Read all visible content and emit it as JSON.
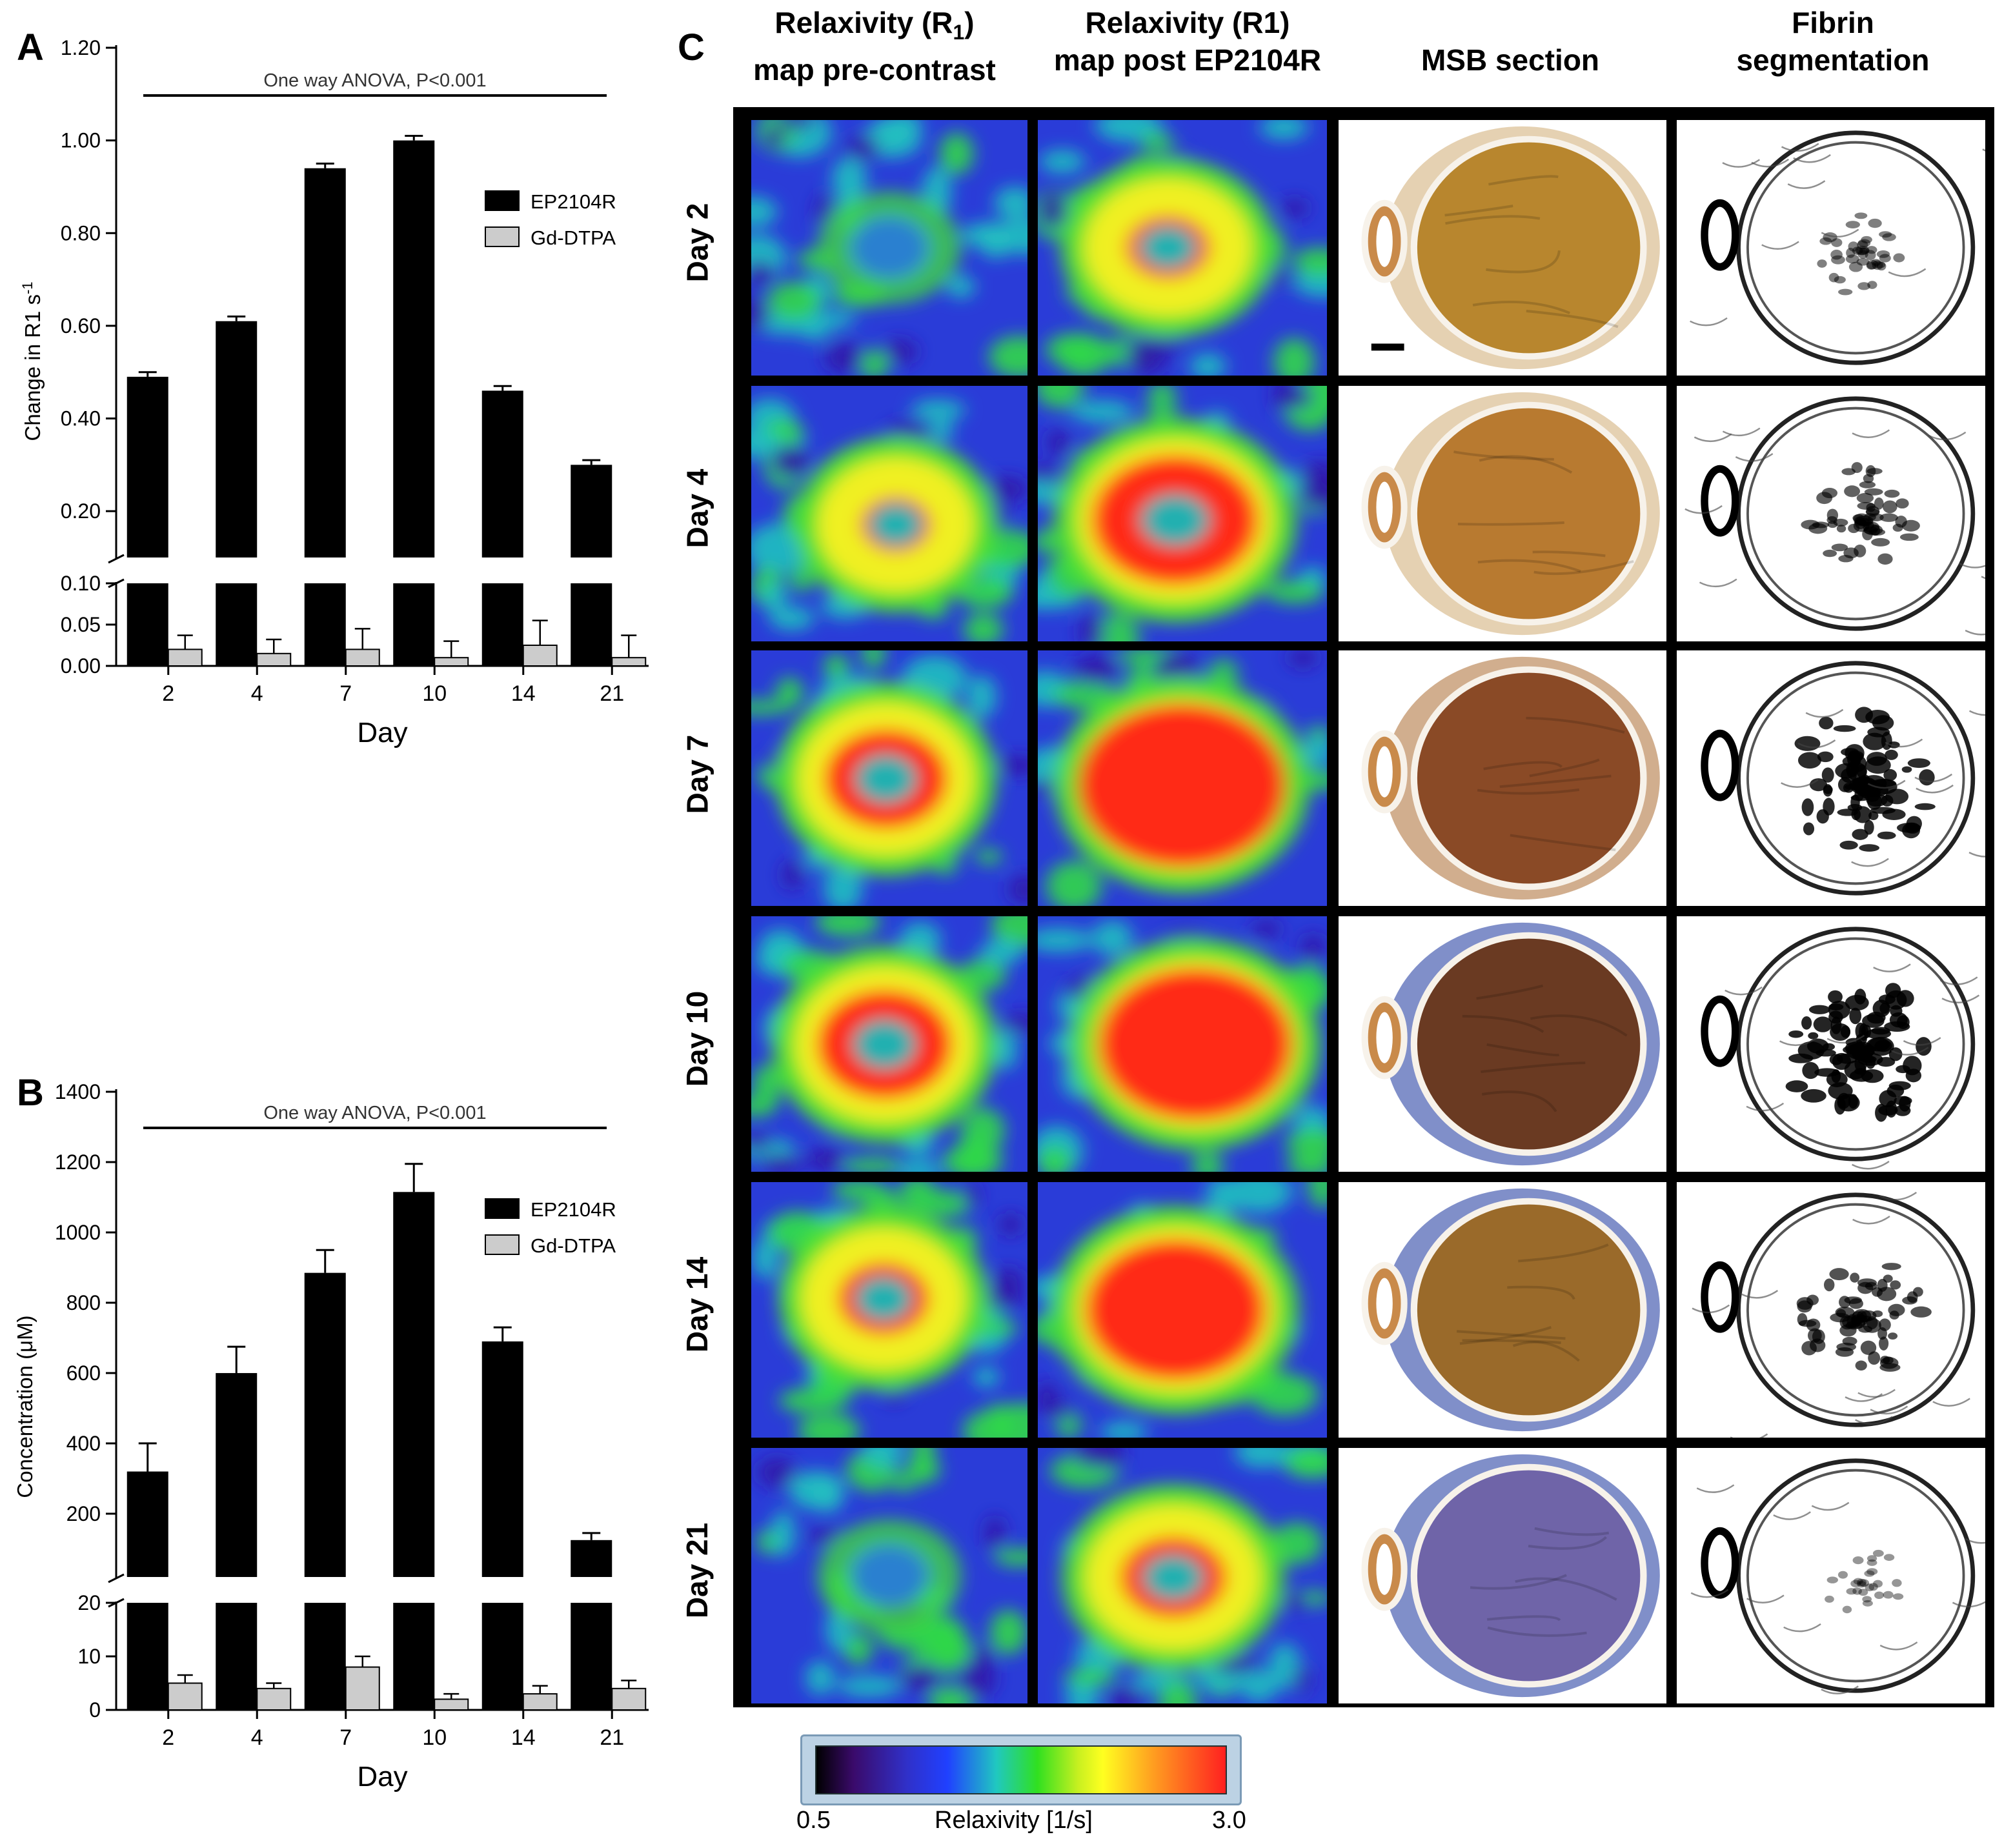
{
  "panels": {
    "a": "A",
    "b": "B",
    "c": "C"
  },
  "chart_data": [
    {
      "type": "bar",
      "panel": "A",
      "title": "",
      "annotation": "One way ANOVA, P<0.001",
      "xlabel": "Day",
      "ylabel": "Change in R1 s",
      "ylabel_sup": "-1",
      "categories": [
        "2",
        "4",
        "7",
        "10",
        "14",
        "21"
      ],
      "axis_break": true,
      "upper_ticks": [
        "1.20",
        "1.00",
        "0.80",
        "0.60",
        "0.40",
        "0.20"
      ],
      "upper_tick_values": [
        1.2,
        1.0,
        0.8,
        0.6,
        0.4,
        0.2
      ],
      "lower_ticks": [
        "0.10",
        "0.05",
        "0.00"
      ],
      "lower_tick_values": [
        0.1,
        0.05,
        0.0
      ],
      "upper_range": [
        0.1,
        1.2
      ],
      "lower_range": [
        0.0,
        0.1
      ],
      "legend_position": "right",
      "series": [
        {
          "name": "EP2104R",
          "color": "#000000",
          "values": [
            0.49,
            0.61,
            0.94,
            1.0,
            0.46,
            0.3
          ],
          "errors": [
            0.01,
            0.01,
            0.01,
            0.01,
            0.01,
            0.01
          ]
        },
        {
          "name": "Gd-DTPA",
          "color": "#cccccc",
          "values": [
            0.02,
            0.015,
            0.02,
            0.01,
            0.025,
            0.01
          ],
          "errors": [
            0.017,
            0.017,
            0.025,
            0.02,
            0.03,
            0.027
          ]
        }
      ]
    },
    {
      "type": "bar",
      "panel": "B",
      "title": "",
      "annotation": "One way ANOVA, P<0.001",
      "xlabel": "Day",
      "ylabel": "Concentration (μM)",
      "categories": [
        "2",
        "4",
        "7",
        "10",
        "14",
        "21"
      ],
      "axis_break": true,
      "upper_ticks": [
        "1400",
        "1200",
        "1000",
        "800",
        "600",
        "400",
        "200"
      ],
      "upper_tick_values": [
        1400,
        1200,
        1000,
        800,
        600,
        400,
        200
      ],
      "lower_ticks": [
        "20",
        "10",
        "0"
      ],
      "lower_tick_values": [
        20,
        10,
        0
      ],
      "upper_range": [
        20,
        1400
      ],
      "lower_range": [
        0,
        20
      ],
      "legend_position": "right",
      "series": [
        {
          "name": "EP2104R",
          "color": "#000000",
          "values": [
            320,
            600,
            885,
            1115,
            690,
            125
          ],
          "errors": [
            80,
            75,
            65,
            80,
            40,
            20
          ]
        },
        {
          "name": "Gd-DTPA",
          "color": "#cccccc",
          "values": [
            5,
            4,
            8,
            2,
            3,
            4
          ],
          "errors": [
            1.5,
            1,
            2,
            1,
            1.5,
            1.5
          ]
        }
      ]
    }
  ],
  "image_grid": {
    "columns": [
      {
        "line1": "Relaxivity (R",
        "sub": "1",
        "line1_end": ")",
        "line2": "map pre-contrast"
      },
      {
        "line1": "Relaxivity (R1)",
        "line2": "map post EP2104R"
      },
      {
        "line1": "MSB section",
        "line2": ""
      },
      {
        "line1": "Fibrin",
        "line2": "segmentation"
      }
    ],
    "rows": [
      "Day 2",
      "Day 4",
      "Day 7",
      "Day 10",
      "Day 14",
      "Day 21"
    ],
    "pre_intensity": [
      0.05,
      0.45,
      0.7,
      0.75,
      0.55,
      0.05
    ],
    "post_intensity": [
      0.5,
      0.85,
      1.0,
      0.95,
      0.9,
      0.6
    ],
    "fibrin_darkness": [
      0.25,
      0.45,
      0.8,
      0.85,
      0.55,
      0.1
    ]
  },
  "colorbar": {
    "min": "0.5",
    "max": "3.0",
    "label": "Relaxivity [1/s]"
  }
}
